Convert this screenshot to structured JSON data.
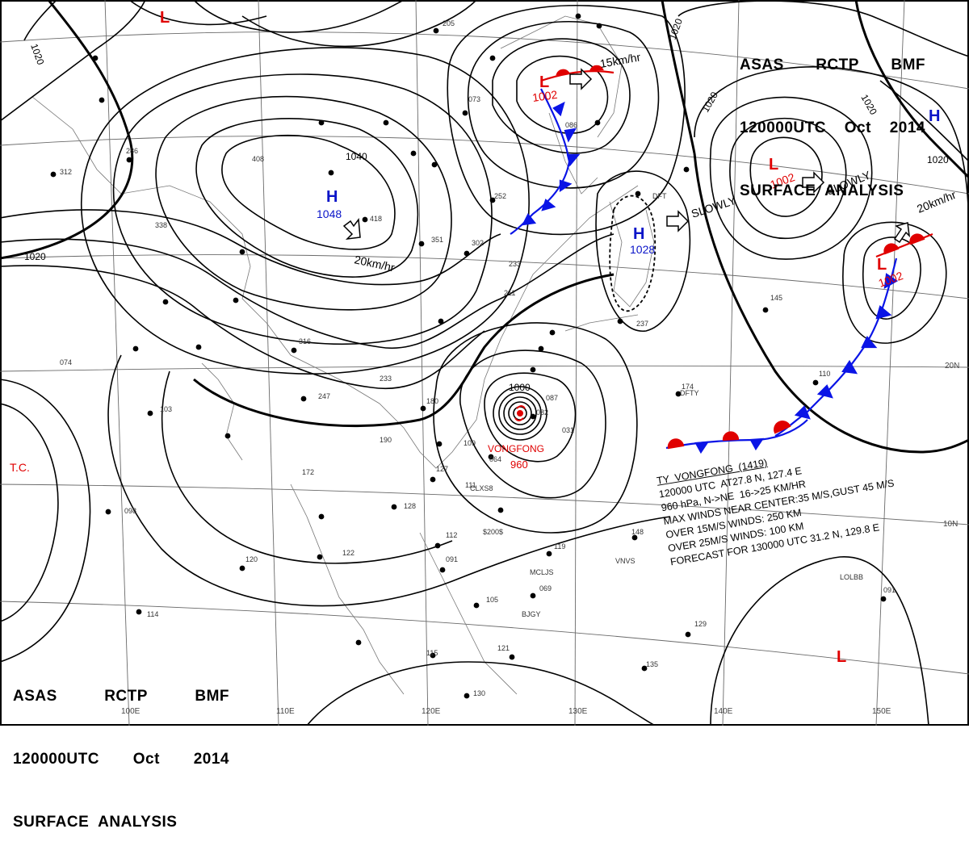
{
  "title_top": {
    "line1": [
      "ASAS",
      "RCTP",
      "BMF"
    ],
    "line2": [
      "120000UTC",
      "Oct",
      "2014"
    ],
    "line3": "SURFACE  ANALYSIS"
  },
  "title_bottom": {
    "line1": [
      "ASAS",
      "RCTP",
      "BMF"
    ],
    "line2": [
      "120000UTC",
      "Oct",
      "2014"
    ],
    "line3": "SURFACE  ANALYSIS"
  },
  "typhoon_info": {
    "line1": "TY  VONGFONG  (1419)",
    "line2": "120000 UTC  AT27.8 N, 127.4 E",
    "line3": "960 hPa, N->NE  16->25 KM/HR",
    "line4": "MAX WINDS NEAR CENTER:35 M/S,GUST 45 M/S",
    "line5": "OVER 15M/S WINDS: 250 KM",
    "line6": "OVER 25M/S WINDS: 100 KM",
    "line7": "FORECAST FOR 130000 UTC 31.2 N, 129.8 E"
  },
  "pressure_centers": [
    {
      "type": "H",
      "value": "1048",
      "color": "#0a14c8"
    },
    {
      "type": "H",
      "value": "1028",
      "color": "#0a14c8"
    },
    {
      "type": "H",
      "value": "",
      "color": "#0a14c8"
    },
    {
      "type": "L",
      "value": "1002",
      "color": "#e00000"
    },
    {
      "type": "L",
      "value": "1002",
      "color": "#e00000"
    },
    {
      "type": "L",
      "value": "1002",
      "color": "#e00000"
    },
    {
      "type": "L",
      "value": "",
      "color": "#e00000"
    },
    {
      "type": "L",
      "value": "",
      "color": "#e00000"
    }
  ],
  "typhoon_label": {
    "name": "VONGFONG",
    "pressure": "960",
    "color": "#e00000"
  },
  "isobar_labels": [
    "1020",
    "1020",
    "1020",
    "1020",
    "1020",
    "1020",
    "1040",
    "1000"
  ],
  "motion_labels": [
    "15km/hr",
    "20km/hr",
    "SLOWLY",
    "SLOWLY",
    "20km/hr"
  ],
  "lat_labels": [
    "20N",
    "10N"
  ],
  "lon_labels": [
    "100E",
    "110E",
    "120E",
    "130E",
    "140E",
    "150E"
  ],
  "tc_label": "T.C.",
  "station_samples": [
    "205",
    "286",
    "312",
    "338",
    "408",
    "418",
    "351",
    "302",
    "252",
    "233",
    "211",
    "237",
    "145",
    "174",
    "110",
    "180",
    "247",
    "233",
    "316",
    "190",
    "172",
    "127",
    "109",
    "064",
    "031",
    "098",
    "122",
    "120",
    "114",
    "148",
    "119",
    "069",
    "121",
    "115",
    "130",
    "135",
    "129",
    "103",
    "074",
    "128",
    "091",
    "112",
    "111",
    "105",
    "082",
    "087",
    "086",
    "091",
    "073"
  ],
  "station_codes": [
    "$200$",
    "CLXS8",
    "MCLJS",
    "VNVS",
    "BJGY",
    "LOLBB",
    "DFTY",
    "DFT"
  ],
  "colors": {
    "front_blue": "#0a14e6",
    "front_red": "#e00000",
    "isobar": "#000000",
    "grid": "#555555"
  }
}
